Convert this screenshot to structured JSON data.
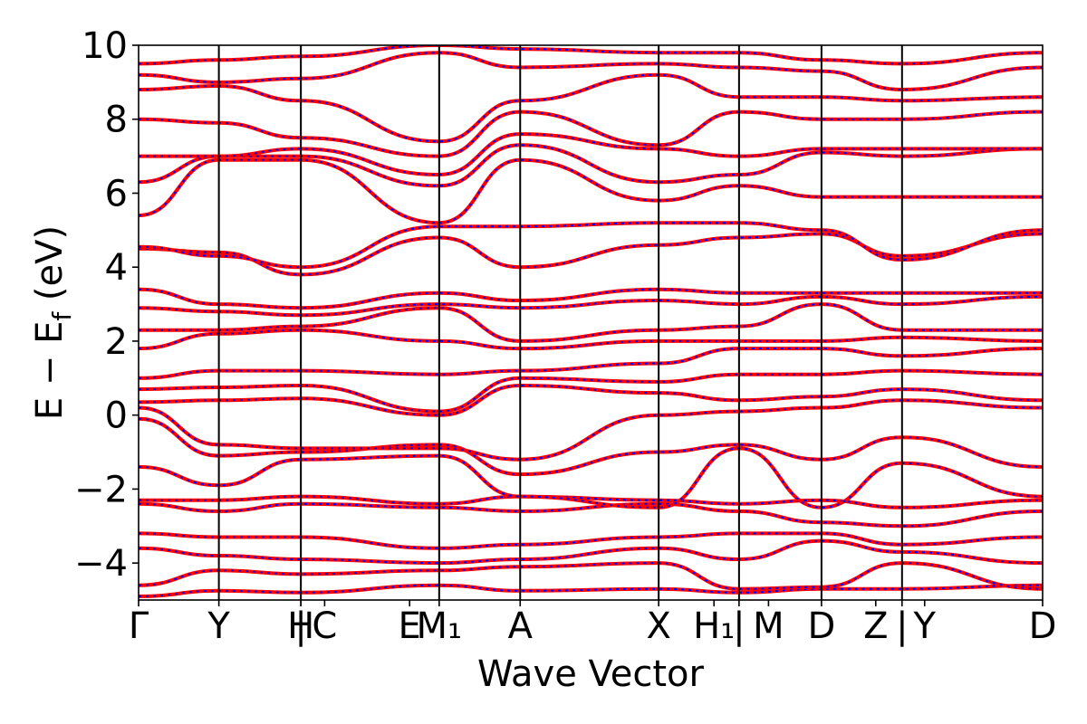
{
  "chart_data": {
    "type": "line",
    "title": "",
    "xlabel": "Wave Vector",
    "ylabel": "E − E_f (eV)",
    "ylabel_main": "E − E",
    "ylabel_sub": "f",
    "ylabel_unit": " (eV)",
    "ylim": [
      -5,
      10
    ],
    "xlim": [
      0,
      1
    ],
    "grid": false,
    "legend": "none",
    "y_ticks": [
      -4,
      -2,
      0,
      2,
      4,
      6,
      8,
      10
    ],
    "y_tick_labels": [
      "−4",
      "−2",
      "0",
      "2",
      "4",
      "6",
      "8",
      "10"
    ],
    "kpoints": [
      {
        "label": "Γ",
        "x": 0.0,
        "vline": false
      },
      {
        "label": "Y",
        "x": 0.0888,
        "vline": true
      },
      {
        "label": "H",
        "x": 0.1795,
        "vline": false
      },
      {
        "label": "C",
        "x": 0.2058,
        "vline": false
      },
      {
        "label": "|",
        "x": 0.1795,
        "vline": true
      },
      {
        "label": "E",
        "x": 0.2998,
        "vline": false
      },
      {
        "label": "M₁",
        "x": 0.3325,
        "vline": true
      },
      {
        "label": "A",
        "x": 0.4221,
        "vline": true
      },
      {
        "label": "X",
        "x": 0.5753,
        "vline": true
      },
      {
        "label": "H₁",
        "x": 0.6365,
        "vline": false
      },
      {
        "label": "|",
        "x": 0.6642,
        "vline": true
      },
      {
        "label": "M",
        "x": 0.6968,
        "vline": false
      },
      {
        "label": "D",
        "x": 0.7554,
        "vline": true
      },
      {
        "label": "Z",
        "x": 0.8154,
        "vline": false
      },
      {
        "label": "|",
        "x": 0.8445,
        "vline": true
      },
      {
        "label": "Y",
        "x": 0.8695,
        "vline": false
      },
      {
        "label": "D",
        "x": 1.0,
        "vline": false
      }
    ],
    "segments": [
      0,
      0.0888,
      0.1795,
      0.3325,
      0.4221,
      0.5753,
      0.6642,
      0.7554,
      0.8445,
      1.0
    ],
    "segment_starts": [
      0,
      0.1795,
      0.6642,
      0.8445
    ],
    "series": [
      {
        "name": "",
        "color": "#ff0000",
        "style": "solid"
      },
      {
        "name": "",
        "color": "#0000ff",
        "style": "dotted"
      }
    ],
    "bands": [
      [
        -4.9,
        -4.75,
        -4.8,
        -4.6,
        -4.75,
        -4.7,
        -4.8,
        -4.7,
        -4.7,
        -4.6
      ],
      [
        -4.6,
        -4.2,
        -4.3,
        -4.2,
        -4.1,
        -4.0,
        -4.7,
        -4.65,
        -4.0,
        -4.7
      ],
      [
        -3.6,
        -3.8,
        -3.9,
        -4.0,
        -3.9,
        -3.6,
        -3.9,
        -3.4,
        -3.7,
        -4.0
      ],
      [
        -3.2,
        -3.3,
        -3.3,
        -3.6,
        -3.5,
        -3.3,
        -3.2,
        -3.2,
        -3.5,
        -3.3
      ],
      [
        -2.4,
        -2.6,
        -2.4,
        -2.5,
        -2.6,
        -2.4,
        -2.6,
        -2.9,
        -3.0,
        -2.6
      ],
      [
        -2.3,
        -2.3,
        -2.2,
        -2.4,
        -2.2,
        -2.3,
        -2.4,
        -2.3,
        -2.5,
        -2.3
      ],
      [
        -1.4,
        -1.9,
        -1.2,
        -1.1,
        -2.2,
        -2.5,
        -0.9,
        -2.5,
        -1.3,
        -2.2
      ],
      [
        -0.1,
        -1.1,
        -1.0,
        -0.8,
        -1.6,
        -1.0,
        -0.8,
        -1.2,
        -0.6,
        -1.4
      ],
      [
        0.2,
        -0.8,
        -0.9,
        -0.9,
        -1.2,
        0.0,
        0.1,
        0.2,
        0.4,
        0.2
      ],
      [
        0.35,
        0.4,
        0.45,
        0.0,
        0.8,
        0.6,
        0.4,
        0.5,
        0.7,
        0.4
      ],
      [
        0.7,
        0.75,
        0.8,
        0.1,
        1.0,
        0.9,
        1.1,
        1.1,
        1.2,
        1.1
      ],
      [
        1.0,
        1.2,
        1.2,
        1.1,
        1.2,
        1.4,
        1.8,
        1.8,
        1.6,
        1.8
      ],
      [
        1.8,
        2.2,
        2.3,
        2.0,
        1.8,
        2.0,
        2.0,
        2.0,
        2.1,
        2.0
      ],
      [
        2.3,
        2.3,
        2.4,
        2.9,
        2.0,
        2.3,
        2.4,
        3.0,
        2.3,
        2.3
      ],
      [
        2.9,
        2.8,
        2.7,
        3.0,
        2.9,
        3.1,
        3.0,
        3.2,
        3.0,
        3.2
      ],
      [
        3.4,
        3.0,
        2.9,
        3.3,
        3.1,
        3.4,
        3.3,
        3.3,
        3.3,
        3.3
      ],
      [
        4.5,
        4.4,
        3.8,
        4.8,
        4.0,
        4.6,
        4.8,
        4.9,
        4.3,
        4.9
      ],
      [
        4.55,
        4.3,
        4.0,
        5.1,
        5.1,
        5.2,
        5.2,
        5.0,
        4.2,
        5.0
      ],
      [
        5.4,
        6.9,
        6.9,
        5.2,
        6.9,
        5.8,
        6.2,
        5.9,
        5.9,
        5.9
      ],
      [
        6.3,
        7.0,
        7.0,
        6.2,
        7.3,
        6.3,
        6.5,
        7.1,
        7.0,
        7.2
      ],
      [
        7.0,
        7.0,
        7.2,
        6.5,
        7.6,
        7.2,
        7.0,
        7.2,
        7.2,
        7.2
      ],
      [
        8.0,
        7.9,
        7.5,
        7.0,
        8.2,
        7.3,
        8.2,
        8.0,
        8.0,
        8.2
      ],
      [
        8.8,
        8.9,
        8.5,
        7.4,
        8.5,
        9.2,
        8.6,
        8.6,
        8.5,
        8.6
      ],
      [
        9.2,
        9.0,
        9.1,
        9.8,
        9.4,
        9.5,
        9.4,
        9.3,
        8.8,
        9.4
      ],
      [
        9.5,
        9.6,
        9.7,
        10.0,
        9.9,
        9.8,
        9.8,
        9.6,
        9.5,
        9.8
      ]
    ]
  }
}
